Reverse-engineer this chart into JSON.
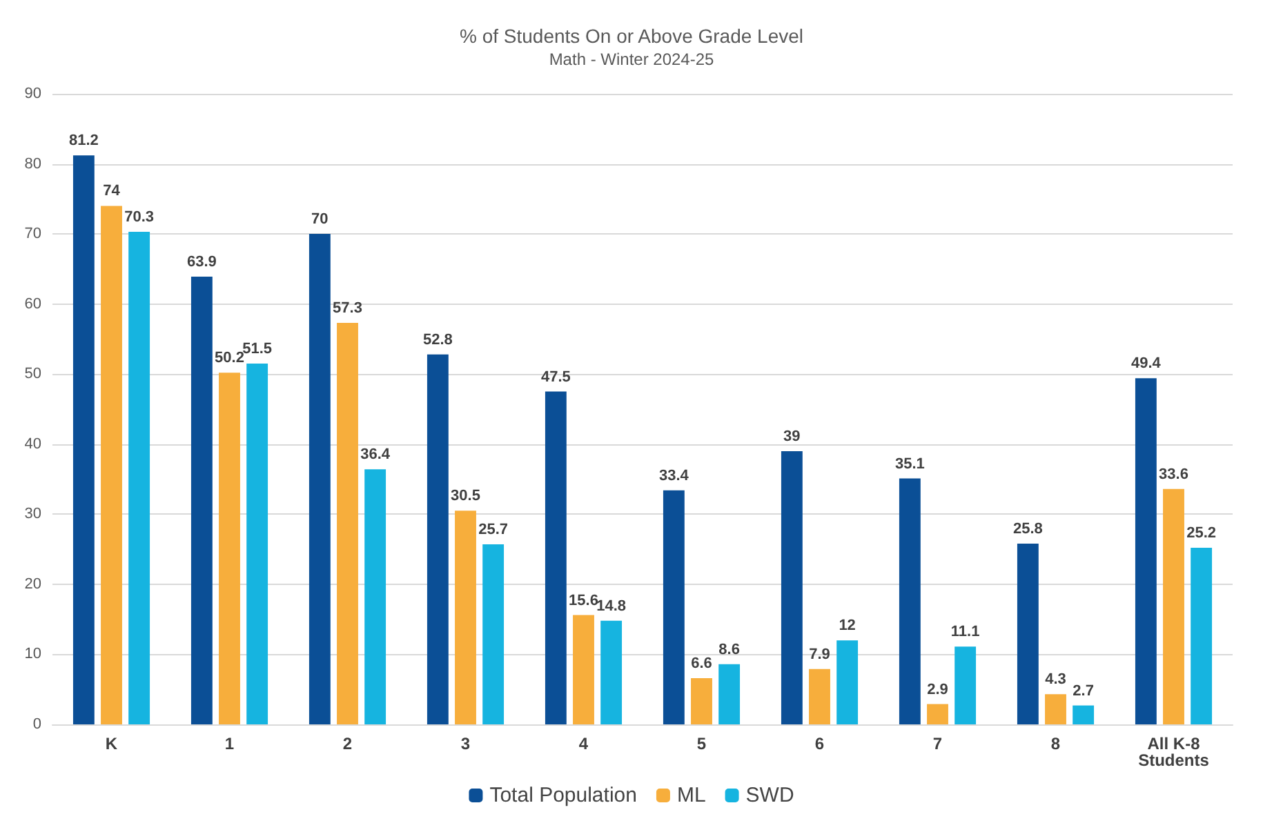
{
  "chart_data": {
    "type": "bar",
    "title": "% of Students On or Above Grade Level",
    "subtitle": "Math - Winter 2024-25",
    "categories": [
      "K",
      "1",
      "2",
      "3",
      "4",
      "5",
      "6",
      "7",
      "8",
      "All K-8\nStudents"
    ],
    "series": [
      {
        "name": "Total Population",
        "color": "#0b4f96",
        "values": [
          81.2,
          63.9,
          70,
          52.8,
          47.5,
          33.4,
          39,
          35.1,
          25.8,
          49.4
        ]
      },
      {
        "name": "ML",
        "color": "#f7ae3c",
        "values": [
          74,
          50.2,
          57.3,
          30.5,
          15.6,
          6.6,
          7.9,
          2.9,
          4.3,
          33.6
        ]
      },
      {
        "name": "SWD",
        "color": "#16b4e0",
        "values": [
          70.3,
          51.5,
          36.4,
          25.7,
          14.8,
          8.6,
          12,
          11.1,
          2.7,
          25.2
        ]
      }
    ],
    "ylim": [
      0,
      90
    ],
    "yticks": [
      0,
      10,
      20,
      30,
      40,
      50,
      60,
      70,
      80,
      90
    ],
    "grid": "y",
    "legend": "bottom",
    "data_labels": true
  }
}
